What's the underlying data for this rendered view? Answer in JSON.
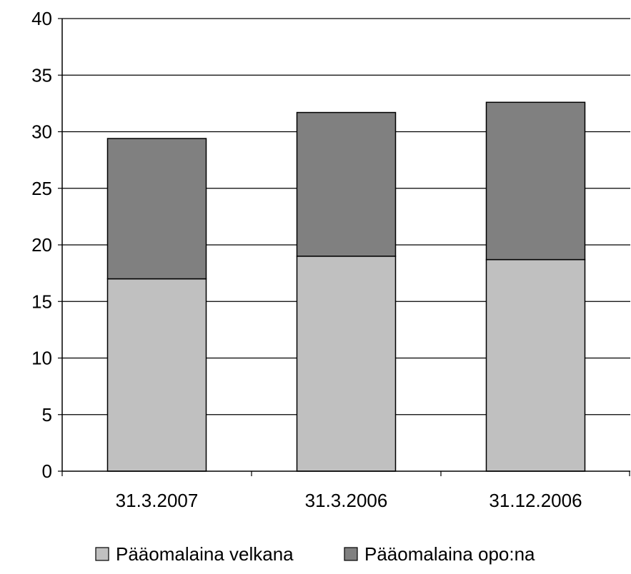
{
  "chart_data": {
    "type": "bar",
    "stacked": true,
    "title": "",
    "xlabel": "",
    "ylabel": "",
    "categories": [
      "31.3.2007",
      "31.3.2006",
      "31.12.2006"
    ],
    "series": [
      {
        "name": "Pääomalaina velkana",
        "values": [
          17.0,
          19.0,
          18.7
        ],
        "color": "#c0c0c0"
      },
      {
        "name": "Pääomalaina opo:na",
        "values": [
          12.4,
          12.7,
          13.9
        ],
        "color": "#808080"
      }
    ],
    "ylim": [
      0,
      40
    ],
    "yticks": [
      0,
      5,
      10,
      15,
      20,
      25,
      30,
      35,
      40
    ],
    "grid": true,
    "legend_position": "bottom"
  }
}
